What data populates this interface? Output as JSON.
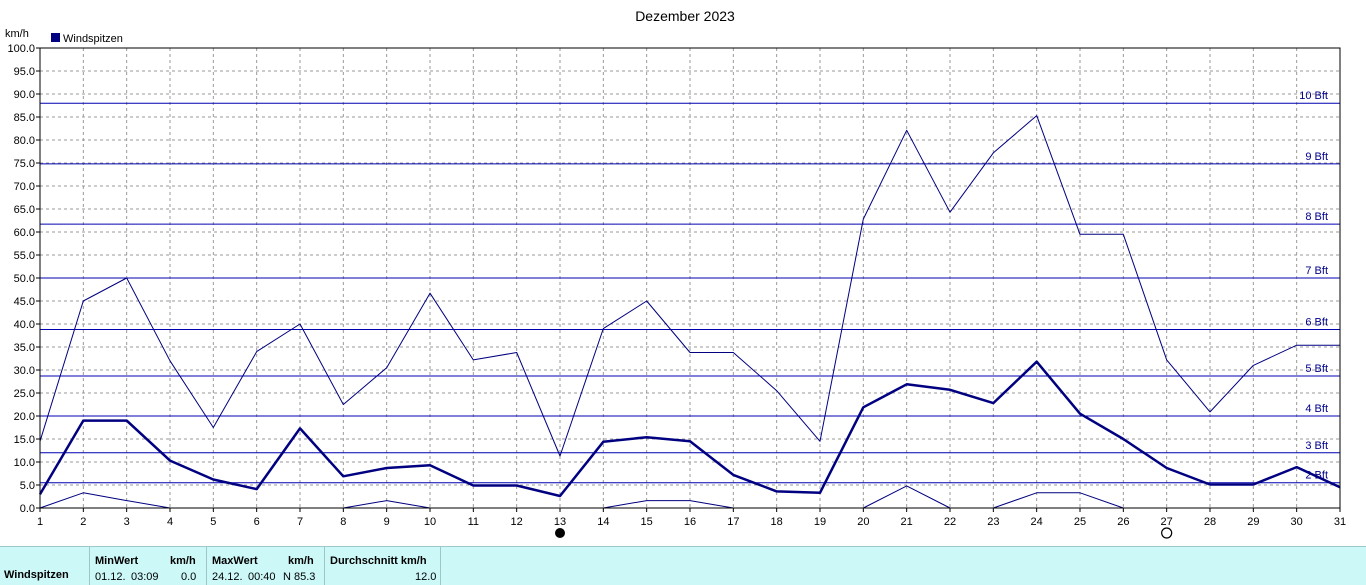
{
  "chart_data": {
    "type": "line",
    "title": "Dezember 2023",
    "ylabel": "km/h",
    "legend": {
      "label": "Windspitzen",
      "color": "#000080",
      "placement": "top-left"
    },
    "ylim": [
      0,
      100
    ],
    "yticks": [
      "0.0",
      "5.0",
      "10.0",
      "15.0",
      "20.0",
      "25.0",
      "30.0",
      "35.0",
      "40.0",
      "45.0",
      "50.0",
      "55.0",
      "60.0",
      "65.0",
      "70.0",
      "75.0",
      "80.0",
      "85.0",
      "90.0",
      "95.0",
      "100.0"
    ],
    "x": [
      1,
      2,
      3,
      4,
      5,
      6,
      7,
      8,
      9,
      10,
      11,
      12,
      13,
      14,
      15,
      16,
      17,
      18,
      19,
      20,
      21,
      22,
      23,
      24,
      25,
      26,
      27,
      28,
      29,
      30,
      31
    ],
    "grid": true,
    "series": [
      {
        "role": "max",
        "values": [
          14.5,
          45.0,
          50.0,
          32.0,
          17.5,
          34.0,
          40.0,
          22.5,
          30.5,
          46.7,
          32.2,
          33.8,
          11.3,
          39.0,
          45.0,
          33.8,
          33.8,
          25.5,
          14.5,
          62.8,
          82.1,
          64.3,
          77.2,
          85.3,
          59.5,
          59.5,
          32.2,
          20.9,
          31.0,
          35.4,
          35.4
        ]
      },
      {
        "role": "avg",
        "values": [
          3.0,
          19.0,
          19.0,
          10.3,
          6.2,
          4.1,
          17.3,
          6.9,
          8.7,
          9.3,
          4.9,
          4.9,
          2.6,
          14.4,
          15.4,
          14.5,
          7.2,
          3.6,
          3.3,
          21.9,
          26.9,
          25.7,
          22.8,
          31.8,
          20.5,
          15.0,
          8.7,
          5.1,
          5.1,
          8.9,
          4.5
        ]
      },
      {
        "role": "min",
        "values": [
          0.0,
          3.3,
          1.6,
          0.0,
          null,
          null,
          null,
          0.0,
          1.6,
          0.0,
          null,
          null,
          null,
          0.0,
          1.6,
          1.6,
          0.0,
          null,
          null,
          0.0,
          4.8,
          0.0,
          0.0,
          3.3,
          3.3,
          0.0,
          null,
          null,
          null,
          null,
          null
        ]
      }
    ],
    "beaufort": [
      {
        "label": "2 Bft",
        "value": 5.5
      },
      {
        "label": "3 Bft",
        "value": 12.0
      },
      {
        "label": "4 Bft",
        "value": 20.0
      },
      {
        "label": "5 Bft",
        "value": 28.7
      },
      {
        "label": "6 Bft",
        "value": 38.8
      },
      {
        "label": "7 Bft",
        "value": 50.0
      },
      {
        "label": "8 Bft",
        "value": 61.7
      },
      {
        "label": "9 Bft",
        "value": 74.8
      },
      {
        "label": "10 Bft",
        "value": 88.0
      }
    ],
    "moon_phases": [
      {
        "day": 13,
        "phase": "new-moon"
      },
      {
        "day": 27,
        "phase": "full-moon"
      }
    ]
  },
  "stats": {
    "row_label": "Windspitzen",
    "min_header": "MinWert",
    "min_unit_header": "km/h",
    "min_date": "01.12.",
    "min_time": "03:09",
    "min_value": "0.0",
    "max_header": "MaxWert",
    "max_unit_header": "km/h",
    "max_date": "24.12.",
    "max_time": "00:40",
    "max_value": "N 85.3",
    "avg_header": "Durchschnitt km/h",
    "avg_value": "12.0"
  }
}
